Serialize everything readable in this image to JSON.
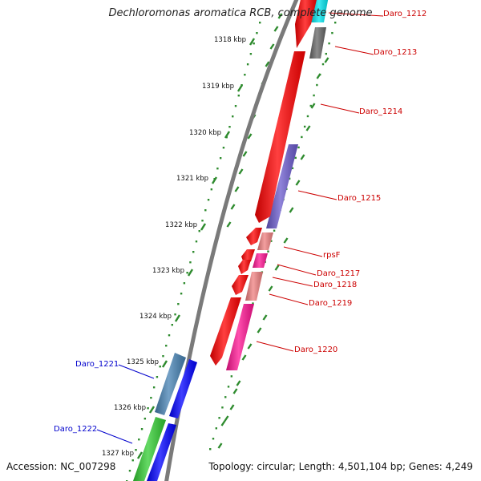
{
  "title": "Dechloromonas aromatica RCB, complete genome",
  "footer": {
    "accession": "Accession: NC_007298",
    "topology": "Topology: circular; Length: 4,501,104 bp; Genes: 4,249"
  },
  "ticks": [
    {
      "label": "1318 kbp",
      "major": true
    },
    {
      "label": "1319 kbp",
      "major": true
    },
    {
      "label": "1320 kbp",
      "major": true
    },
    {
      "label": "1321 kbp",
      "major": true
    },
    {
      "label": "1322 kbp",
      "major": true
    },
    {
      "label": "1323 kbp",
      "major": true
    },
    {
      "label": "1324 kbp",
      "major": true
    },
    {
      "label": "1325 kbp",
      "major": true
    },
    {
      "label": "1326 kbp",
      "major": true
    },
    {
      "label": "1327 kbp",
      "major": true
    }
  ],
  "genes": [
    {
      "name": "Daro_1212",
      "strand": "forward",
      "color": "#00e5ee"
    },
    {
      "name": "Daro_1213",
      "strand": "forward",
      "color": "#666666"
    },
    {
      "name": "Daro_1214",
      "strand": "forward",
      "color": "#ff0000"
    },
    {
      "name": "Daro_1215",
      "strand": "forward",
      "color": "#6a5acd"
    },
    {
      "name": "rpsF",
      "strand": "forward",
      "color": "#f08080"
    },
    {
      "name": "Daro_1217",
      "strand": "forward",
      "color": "#ff1493"
    },
    {
      "name": "Daro_1218",
      "strand": "forward",
      "color": "#f08080"
    },
    {
      "name": "Daro_1219",
      "strand": "forward",
      "color": "#ff0000"
    },
    {
      "name": "Daro_1220",
      "strand": "forward",
      "color": "#ff1493"
    },
    {
      "name": "Daro_1221",
      "strand": "reverse",
      "color": "#4682b4"
    },
    {
      "name": "Daro_1222",
      "strand": "reverse",
      "color": "#32cd32"
    }
  ],
  "colors": {
    "forward_label": "#cc0000",
    "reverse_label": "#0000cc",
    "backbone": "#808080",
    "tick_dots": "#2e8b2e",
    "cds_forward": "#ff0000",
    "cds_reverse": "#0000ff"
  }
}
